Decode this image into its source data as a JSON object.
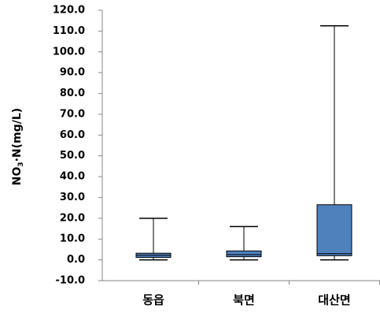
{
  "chart_data": {
    "type": "box",
    "y_label": {
      "main": "NO",
      "sub": "3",
      "rest": "·N(mg/L)"
    },
    "categories": [
      "동읍",
      "북면",
      "대산면"
    ],
    "min": [
      0,
      0,
      0
    ],
    "q1": [
      1.2,
      1.5,
      2
    ],
    "median": [
      2.2,
      2.5,
      3
    ],
    "q3": [
      3.2,
      4.3,
      26.5
    ],
    "max": [
      20,
      16,
      112.5
    ],
    "color": "#4f81bd",
    "ylim": [
      -10,
      120
    ],
    "yticks": [
      {
        "value": -10,
        "label": "-10.0"
      },
      {
        "value": 0,
        "label": "0.0"
      },
      {
        "value": 10,
        "label": "10.0"
      },
      {
        "value": 20,
        "label": "20.0"
      },
      {
        "value": 30,
        "label": "30.0"
      },
      {
        "value": 40,
        "label": "40.0"
      },
      {
        "value": 50,
        "label": "50.0"
      },
      {
        "value": 60,
        "label": "60.0"
      },
      {
        "value": 70,
        "label": "70.0"
      },
      {
        "value": 80,
        "label": "80.0"
      },
      {
        "value": 90,
        "label": "90.0"
      },
      {
        "value": 100,
        "label": "100.0"
      },
      {
        "value": 110,
        "label": "110.0"
      },
      {
        "value": 120,
        "label": "120.0"
      }
    ]
  }
}
